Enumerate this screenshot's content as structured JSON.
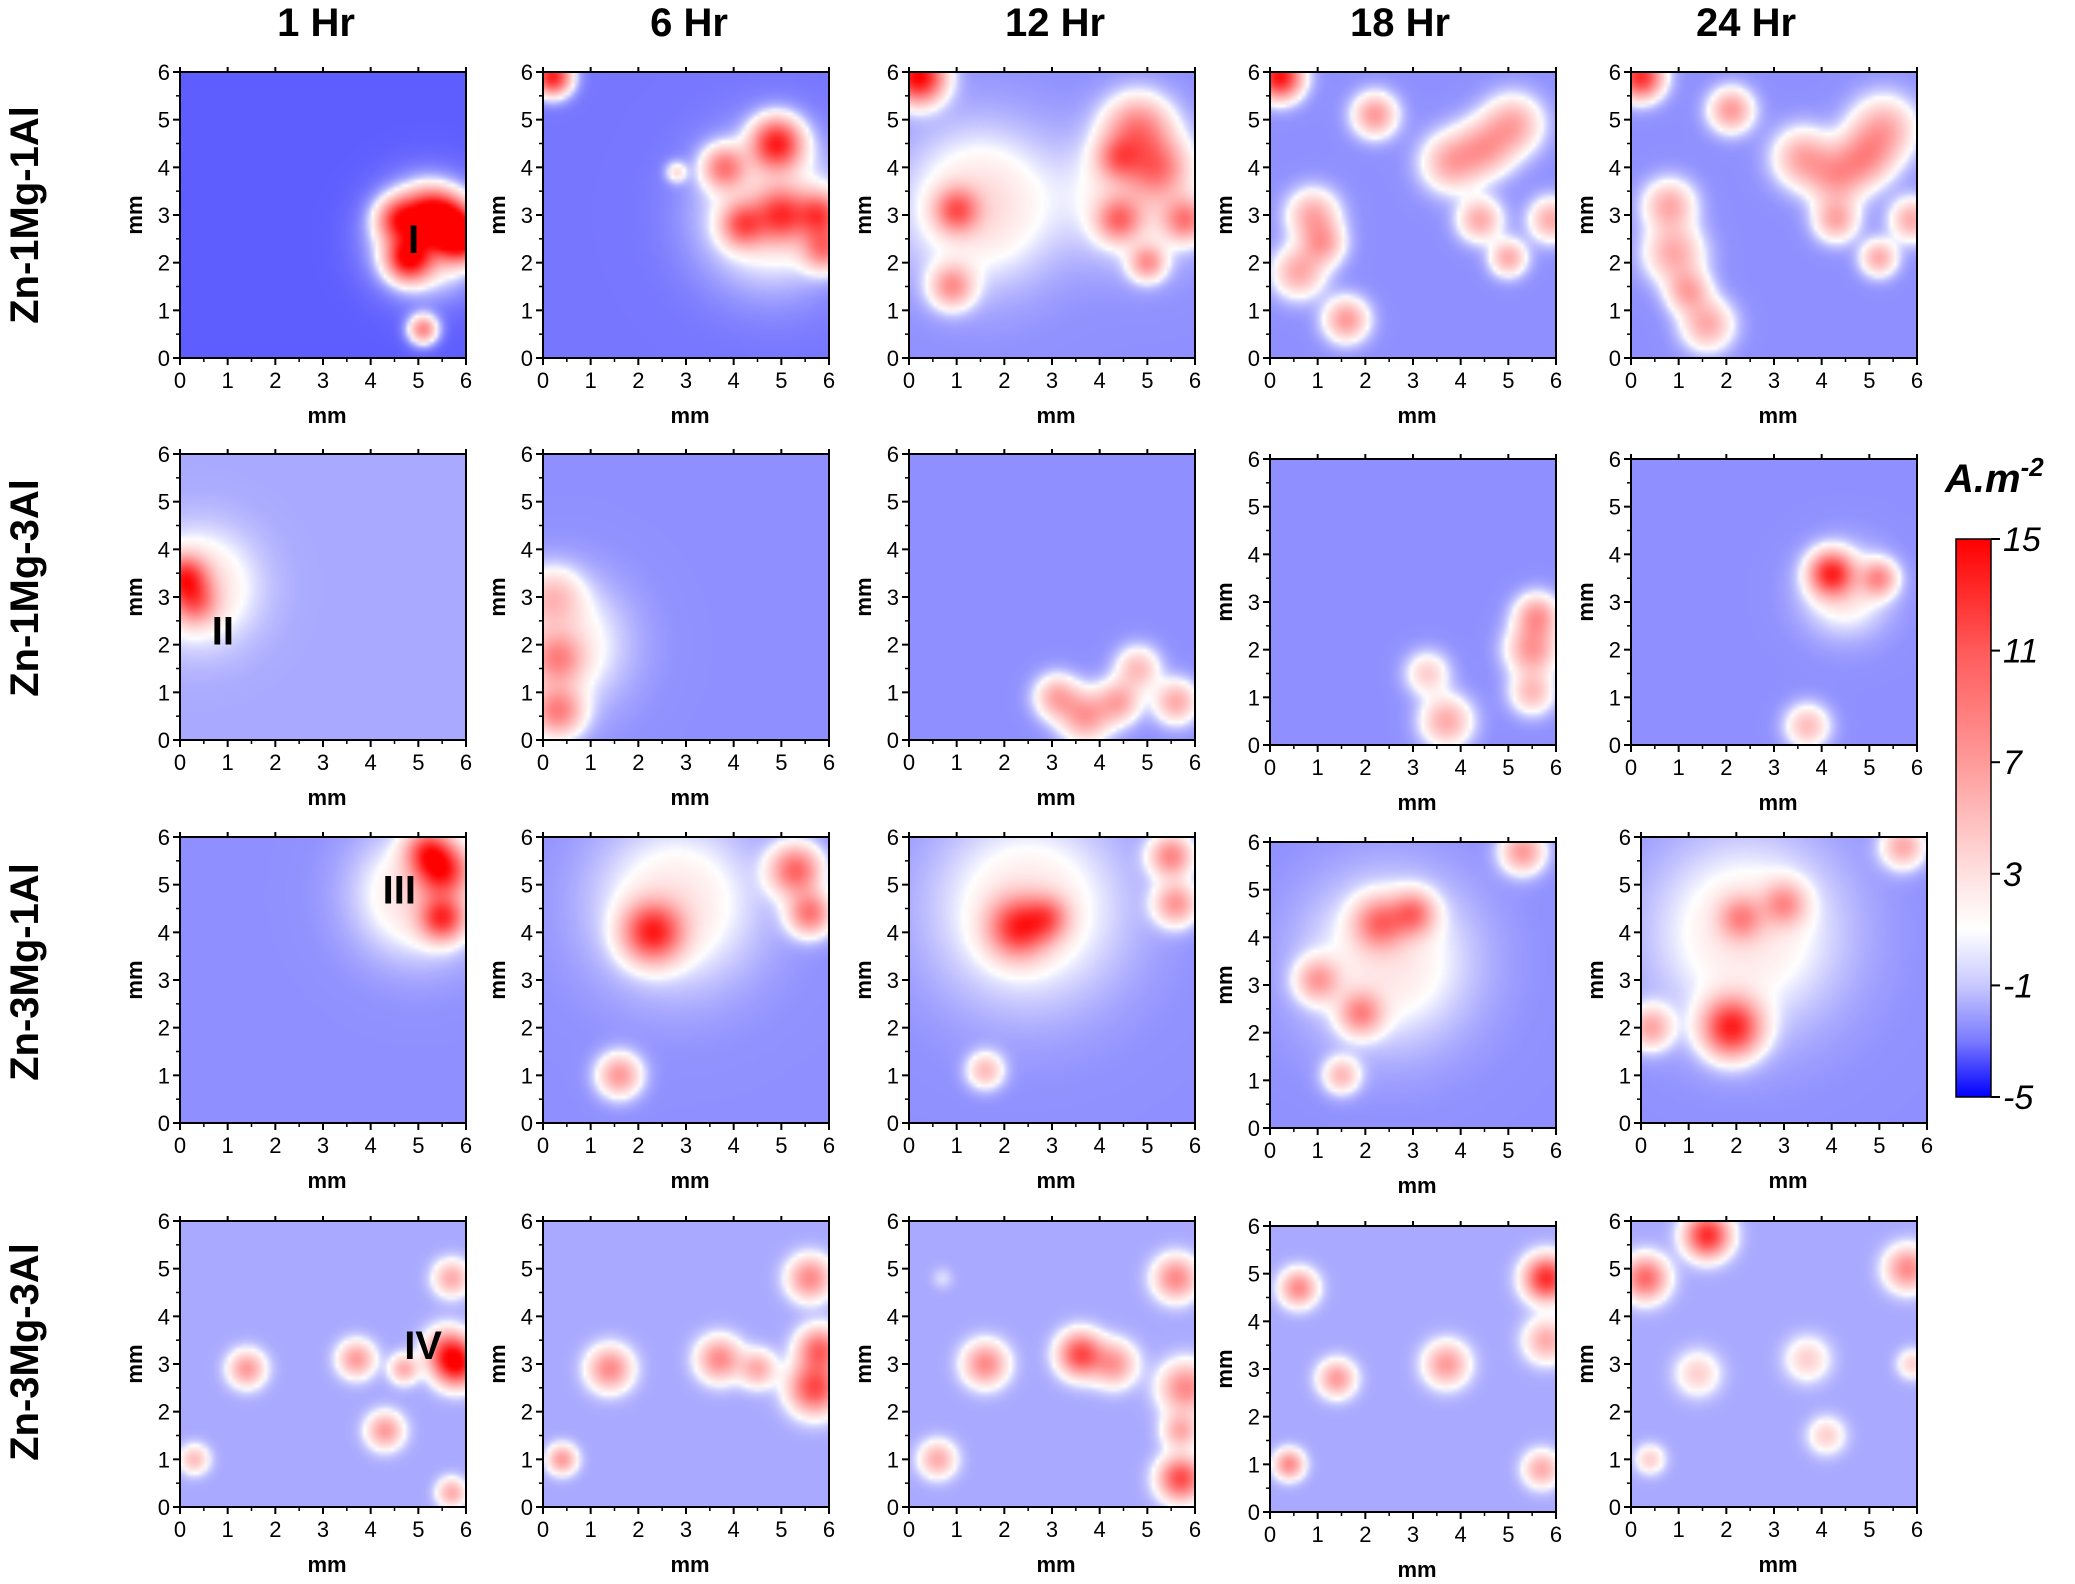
{
  "chart_data": {
    "type": "heatmap",
    "columns": [
      "1 Hr",
      "6 Hr",
      "12 Hr",
      "18 Hr",
      "24 Hr"
    ],
    "rows": [
      "Zn-1Mg-1Al",
      "Zn-1Mg-3Al",
      "Zn-3Mg-1Al",
      "Zn-3Mg-3Al"
    ],
    "xlabel": "mm",
    "ylabel": "mm",
    "xlim": [
      0,
      6
    ],
    "ylim": [
      0,
      6
    ],
    "ticks": [
      "0",
      "1",
      "2",
      "3",
      "4",
      "5",
      "6"
    ],
    "colorbar": {
      "title": "A.m",
      "title_exponent": "-2",
      "min": -5,
      "max": 15,
      "ticks": [
        "15",
        "11",
        "7",
        "3",
        "-1",
        "-5"
      ],
      "tick_values": [
        15,
        11,
        7,
        3,
        -1,
        -5
      ],
      "colors": {
        "low": "#0000ff",
        "mid": "#ffffff",
        "high": "#ff0000"
      }
    },
    "annotations": [
      {
        "text": "I",
        "row": 0,
        "col": 0,
        "x": 4.9,
        "y": 2.5
      },
      {
        "text": "II",
        "row": 1,
        "col": 0,
        "x": 0.9,
        "y": 2.3
      },
      {
        "text": "III",
        "row": 2,
        "col": 0,
        "x": 4.6,
        "y": 4.9
      },
      {
        "text": "IV",
        "row": 3,
        "col": 0,
        "x": 5.1,
        "y": 3.4
      }
    ],
    "base_level": -2,
    "panels": [
      [
        {
          "base": -3,
          "spots": [
            [
              5.6,
              2.8,
              0.35,
              14
            ],
            [
              4.8,
              2.1,
              0.3,
              13
            ],
            [
              5.9,
              2.5,
              0.3,
              12
            ],
            [
              5.2,
              3.0,
              0.35,
              10
            ],
            [
              4.6,
              2.9,
              0.3,
              9
            ],
            [
              5.1,
              0.6,
              0.2,
              6
            ],
            [
              5.2,
              2.5,
              0.7,
              3
            ]
          ]
        },
        {
          "base": -2.5,
          "spots": [
            [
              4.9,
              4.5,
              0.35,
              12
            ],
            [
              5.0,
              3.0,
              0.35,
              8
            ],
            [
              5.8,
              3.0,
              0.3,
              8
            ],
            [
              4.2,
              2.8,
              0.3,
              7
            ],
            [
              3.8,
              4.0,
              0.3,
              6
            ],
            [
              5.9,
              2.3,
              0.3,
              6
            ],
            [
              0.2,
              5.9,
              0.25,
              13
            ],
            [
              2.8,
              3.9,
              0.15,
              1
            ],
            [
              4.8,
              3.0,
              1.0,
              1.5
            ]
          ]
        },
        {
          "base": -2,
          "spots": [
            [
              0.2,
              5.9,
              0.35,
              15
            ],
            [
              1.0,
              3.1,
              0.3,
              7
            ],
            [
              0.9,
              1.5,
              0.3,
              5
            ],
            [
              4.8,
              4.8,
              0.45,
              6
            ],
            [
              5.2,
              4.0,
              0.4,
              5
            ],
            [
              4.4,
              4.2,
              0.3,
              5
            ],
            [
              4.4,
              2.9,
              0.3,
              6
            ],
            [
              5.8,
              2.9,
              0.3,
              6
            ],
            [
              5.0,
              2.0,
              0.25,
              5
            ],
            [
              1.5,
              3.2,
              1.1,
              1.5
            ],
            [
              4.8,
              3.5,
              0.9,
              1.5
            ]
          ]
        },
        {
          "base": -2,
          "spots": [
            [
              0.2,
              5.9,
              0.3,
              14
            ],
            [
              2.2,
              5.1,
              0.3,
              5
            ],
            [
              0.9,
              3.0,
              0.35,
              4
            ],
            [
              0.6,
              1.8,
              0.35,
              4
            ],
            [
              1.6,
              0.8,
              0.3,
              5
            ],
            [
              1.1,
              2.4,
              0.3,
              4
            ],
            [
              3.8,
              4.1,
              0.4,
              4
            ],
            [
              4.5,
              4.4,
              0.4,
              4
            ],
            [
              5.1,
              4.9,
              0.4,
              4
            ],
            [
              4.4,
              2.9,
              0.3,
              4
            ],
            [
              5.9,
              2.9,
              0.3,
              4
            ],
            [
              5.0,
              2.1,
              0.25,
              4
            ]
          ]
        },
        {
          "base": -2,
          "spots": [
            [
              0.2,
              5.9,
              0.3,
              12
            ],
            [
              2.1,
              5.2,
              0.3,
              5
            ],
            [
              0.8,
              3.2,
              0.35,
              4
            ],
            [
              0.9,
              2.2,
              0.4,
              4
            ],
            [
              1.6,
              0.7,
              0.35,
              4
            ],
            [
              1.2,
              1.4,
              0.3,
              4
            ],
            [
              3.6,
              4.2,
              0.4,
              4
            ],
            [
              4.3,
              3.8,
              0.4,
              4
            ],
            [
              5.3,
              4.8,
              0.45,
              4
            ],
            [
              4.9,
              4.2,
              0.4,
              4
            ],
            [
              4.3,
              2.9,
              0.3,
              4
            ],
            [
              5.9,
              2.9,
              0.3,
              4
            ],
            [
              5.2,
              2.1,
              0.25,
              4
            ]
          ]
        }
      ],
      [
        {
          "base": -1.5,
          "spots": [
            [
              0.1,
              3.4,
              0.3,
              10
            ],
            [
              0.3,
              2.9,
              0.3,
              6
            ],
            [
              0.4,
              3.2,
              0.8,
              1.5
            ]
          ]
        },
        {
          "base": -2,
          "spots": [
            [
              0.3,
              0.6,
              0.35,
              6
            ],
            [
              0.3,
              1.7,
              0.35,
              4
            ],
            [
              0.2,
              3.0,
              0.4,
              2
            ],
            [
              0.4,
              2.0,
              0.9,
              1
            ]
          ]
        },
        {
          "base": -2,
          "spots": [
            [
              3.7,
              0.5,
              0.35,
              5
            ],
            [
              4.4,
              0.8,
              0.3,
              4
            ],
            [
              5.6,
              0.8,
              0.3,
              4
            ],
            [
              3.1,
              0.9,
              0.3,
              4
            ],
            [
              4.8,
              1.5,
              0.3,
              3
            ]
          ]
        },
        {
          "base": -2,
          "spots": [
            [
              5.5,
              2.0,
              0.35,
              5
            ],
            [
              5.6,
              2.7,
              0.3,
              5
            ],
            [
              3.7,
              0.5,
              0.35,
              4
            ],
            [
              5.5,
              1.1,
              0.3,
              3
            ],
            [
              3.3,
              1.5,
              0.3,
              2
            ]
          ]
        },
        {
          "base": -2,
          "spots": [
            [
              4.2,
              3.6,
              0.3,
              11
            ],
            [
              5.2,
              3.5,
              0.25,
              5
            ],
            [
              3.7,
              0.4,
              0.3,
              3
            ],
            [
              4.5,
              3.2,
              0.6,
              1
            ]
          ]
        }
      ],
      [
        {
          "base": -2,
          "spots": [
            [
              5.5,
              5.3,
              0.35,
              11
            ],
            [
              5.5,
              4.3,
              0.3,
              10
            ],
            [
              5.2,
              5.7,
              0.3,
              8
            ],
            [
              5.0,
              4.8,
              0.9,
              1.5
            ]
          ]
        },
        {
          "base": -2,
          "spots": [
            [
              2.3,
              4.0,
              0.4,
              11
            ],
            [
              5.3,
              5.3,
              0.35,
              8
            ],
            [
              5.6,
              4.4,
              0.3,
              7
            ],
            [
              1.6,
              1.0,
              0.3,
              5
            ],
            [
              2.8,
              4.6,
              1.2,
              1
            ]
          ]
        },
        {
          "base": -2,
          "spots": [
            [
              2.3,
              4.1,
              0.4,
              10
            ],
            [
              2.9,
              4.3,
              0.3,
              5
            ],
            [
              5.5,
              5.6,
              0.3,
              6
            ],
            [
              5.6,
              4.6,
              0.3,
              5
            ],
            [
              1.6,
              1.1,
              0.25,
              3
            ],
            [
              2.5,
              4.5,
              1.4,
              1
            ]
          ]
        },
        {
          "base": -2,
          "spots": [
            [
              2.3,
              4.3,
              0.35,
              6
            ],
            [
              3.0,
              4.5,
              0.3,
              6
            ],
            [
              1.0,
              3.1,
              0.3,
              4
            ],
            [
              1.9,
              2.4,
              0.3,
              5
            ],
            [
              5.3,
              5.8,
              0.3,
              5
            ],
            [
              1.5,
              1.1,
              0.25,
              3
            ],
            [
              2.5,
              3.5,
              1.2,
              1
            ]
          ]
        },
        {
          "base": -2,
          "spots": [
            [
              1.9,
              2.0,
              0.4,
              12
            ],
            [
              0.2,
              2.0,
              0.3,
              4
            ],
            [
              2.1,
              4.3,
              0.3,
              4
            ],
            [
              3.0,
              4.6,
              0.3,
              4
            ],
            [
              5.5,
              5.8,
              0.3,
              4
            ],
            [
              2.2,
              4.0,
              1.4,
              1
            ]
          ]
        }
      ],
      [
        {
          "base": -1.5,
          "spots": [
            [
              5.8,
              3.0,
              0.3,
              13
            ],
            [
              5.6,
              3.3,
              0.3,
              6
            ],
            [
              1.4,
              2.9,
              0.25,
              5
            ],
            [
              3.7,
              3.1,
              0.25,
              5
            ],
            [
              4.3,
              1.6,
              0.25,
              5
            ],
            [
              4.7,
              2.9,
              0.2,
              4
            ],
            [
              5.7,
              4.8,
              0.25,
              4
            ],
            [
              5.7,
              0.3,
              0.2,
              4
            ],
            [
              0.3,
              1.0,
              0.2,
              3
            ]
          ]
        },
        {
          "base": -1.5,
          "spots": [
            [
              5.7,
              2.5,
              0.35,
              10
            ],
            [
              5.8,
              3.3,
              0.3,
              8
            ],
            [
              5.6,
              4.8,
              0.3,
              6
            ],
            [
              1.4,
              2.9,
              0.3,
              6
            ],
            [
              3.7,
              3.1,
              0.3,
              6
            ],
            [
              4.5,
              2.9,
              0.25,
              4
            ],
            [
              0.4,
              1.0,
              0.2,
              5
            ]
          ]
        },
        {
          "base": -1.5,
          "spots": [
            [
              5.7,
              0.6,
              0.3,
              10
            ],
            [
              5.8,
              2.5,
              0.35,
              6
            ],
            [
              5.6,
              4.8,
              0.3,
              6
            ],
            [
              3.6,
              3.2,
              0.3,
              10
            ],
            [
              4.3,
              3.0,
              0.3,
              5
            ],
            [
              1.6,
              3.0,
              0.3,
              6
            ],
            [
              0.6,
              1.0,
              0.25,
              4
            ],
            [
              5.7,
              1.6,
              0.25,
              4
            ],
            [
              0.7,
              4.8,
              0.15,
              -0.5
            ]
          ]
        },
        {
          "base": -1.5,
          "spots": [
            [
              5.8,
              4.9,
              0.3,
              12
            ],
            [
              0.6,
              4.7,
              0.25,
              6
            ],
            [
              1.4,
              2.8,
              0.25,
              5
            ],
            [
              3.7,
              3.1,
              0.3,
              5
            ],
            [
              5.8,
              3.6,
              0.3,
              4
            ],
            [
              5.7,
              0.9,
              0.25,
              4
            ],
            [
              0.4,
              1.0,
              0.2,
              6
            ]
          ]
        },
        {
          "base": -1.5,
          "spots": [
            [
              1.6,
              5.7,
              0.3,
              12
            ],
            [
              0.3,
              4.8,
              0.3,
              8
            ],
            [
              5.8,
              5.0,
              0.3,
              6
            ],
            [
              1.4,
              2.8,
              0.3,
              2
            ],
            [
              3.7,
              3.1,
              0.3,
              2
            ],
            [
              4.1,
              1.5,
              0.25,
              2
            ],
            [
              0.4,
              1.0,
              0.2,
              2
            ],
            [
              5.9,
              3.0,
              0.2,
              2
            ]
          ]
        }
      ]
    ]
  }
}
